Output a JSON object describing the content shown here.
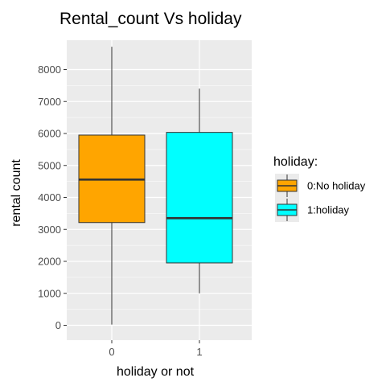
{
  "chart_data": {
    "type": "boxplot",
    "title": "Rental_count Vs holiday",
    "xlabel": "holiday or not",
    "ylabel": "rental count",
    "categories": [
      "0",
      "1"
    ],
    "ylim": [
      -500,
      9000
    ],
    "yticks": [
      0,
      1000,
      2000,
      3000,
      4000,
      5000,
      6000,
      7000,
      8000
    ],
    "grid": true,
    "legend": {
      "title": "holiday:",
      "placement": "right",
      "entries": [
        {
          "label": "0:No holiday",
          "color": "#FFA500"
        },
        {
          "label": "1:holiday",
          "color": "#00FFFF"
        }
      ]
    },
    "boxes": [
      {
        "category": "0",
        "min": 22,
        "q1": 3214,
        "median": 4558,
        "q3": 5950,
        "max": 8714,
        "color": "#FFA500"
      },
      {
        "category": "1",
        "min": 1000,
        "q1": 1951,
        "median": 3351,
        "q3": 6034,
        "max": 7403,
        "color": "#00FFFF"
      }
    ]
  },
  "colors": {
    "panel_background": "#EBEBEB",
    "grid": "#FFFFFF",
    "outline": "#333333"
  }
}
